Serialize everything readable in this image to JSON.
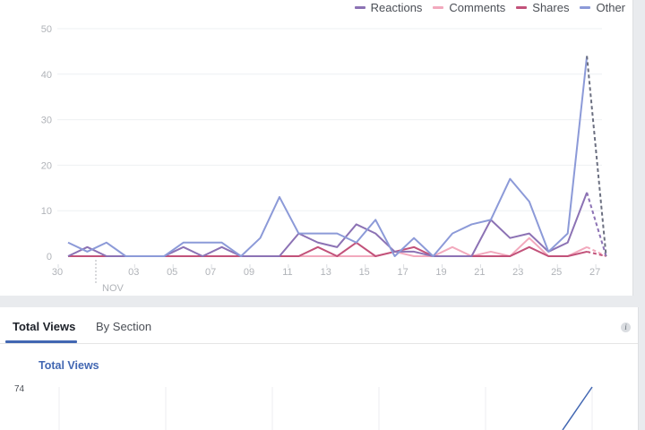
{
  "legend": [
    {
      "label": "Reactions",
      "color": "#8c72b4"
    },
    {
      "label": "Comments",
      "color": "#f2a9bd"
    },
    {
      "label": "Shares",
      "color": "#c2527a"
    },
    {
      "label": "Other",
      "color": "#8c9ad8"
    }
  ],
  "chart_data": [
    {
      "type": "line",
      "title": "",
      "xlabel": "",
      "ylabel": "",
      "ylim": [
        0,
        50
      ],
      "yticks": [
        0,
        10,
        20,
        30,
        40,
        50
      ],
      "grid": true,
      "legend_position": "top-right",
      "x_tick_labels": [
        "30",
        "03",
        "05",
        "07",
        "09",
        "11",
        "13",
        "15",
        "17",
        "19",
        "21",
        "23",
        "25",
        "27"
      ],
      "x_month_label": "NOV",
      "x": [
        "Oct 30",
        "Oct 31",
        "Nov 01",
        "Nov 02",
        "Nov 03",
        "Nov 04",
        "Nov 05",
        "Nov 06",
        "Nov 07",
        "Nov 08",
        "Nov 09",
        "Nov 10",
        "Nov 11",
        "Nov 12",
        "Nov 13",
        "Nov 14",
        "Nov 15",
        "Nov 16",
        "Nov 17",
        "Nov 18",
        "Nov 19",
        "Nov 20",
        "Nov 21",
        "Nov 22",
        "Nov 23",
        "Nov 24",
        "Nov 25",
        "Nov 26",
        "Nov 27"
      ],
      "series": [
        {
          "name": "Reactions",
          "values": [
            0,
            2,
            0,
            0,
            0,
            0,
            2,
            0,
            2,
            0,
            0,
            0,
            5,
            3,
            2,
            7,
            5,
            1,
            1,
            0,
            0,
            0,
            8,
            4,
            5,
            1,
            3,
            14,
            0
          ]
        },
        {
          "name": "Comments",
          "values": [
            0,
            0,
            0,
            0,
            0,
            0,
            0,
            0,
            0,
            0,
            0,
            0,
            0,
            0,
            0,
            0,
            0,
            1,
            0,
            0,
            2,
            0,
            1,
            0,
            4,
            0,
            0,
            2,
            0
          ]
        },
        {
          "name": "Shares",
          "values": [
            0,
            0,
            0,
            0,
            0,
            0,
            0,
            0,
            0,
            0,
            0,
            0,
            0,
            2,
            0,
            3,
            0,
            1,
            2,
            0,
            0,
            0,
            0,
            0,
            2,
            0,
            0,
            1,
            0
          ]
        },
        {
          "name": "Other",
          "values": [
            3,
            1,
            3,
            0,
            0,
            0,
            3,
            3,
            3,
            0,
            4,
            13,
            5,
            5,
            5,
            3,
            8,
            0,
            4,
            0,
            5,
            7,
            8,
            17,
            12,
            1,
            5,
            44,
            0
          ]
        }
      ],
      "note": "Last segment (Nov 26 to Nov 27) drawn dashed (partial/incomplete data)"
    },
    {
      "type": "line",
      "title": "Total Views",
      "ylim": [
        0,
        74
      ],
      "y_max_label": "74",
      "series": [
        {
          "name": "Total Views",
          "color": "#4267b2",
          "values": []
        }
      ],
      "note": "Chart partially visible; only rising final segment shown"
    }
  ],
  "tabs": [
    {
      "label": "Total Views",
      "active": true
    },
    {
      "label": "By Section",
      "active": false
    }
  ],
  "views_chart": {
    "title": "Total Views",
    "y_max": "74"
  },
  "info_icon": "i"
}
